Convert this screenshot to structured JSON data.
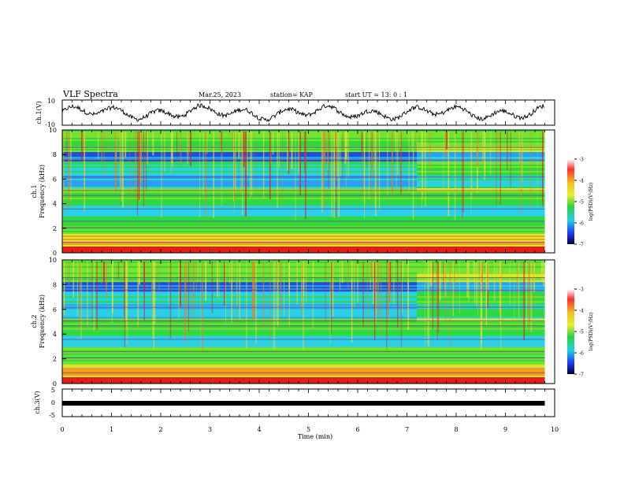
{
  "header": {
    "title": "VLF Spectra",
    "date": "Mar.25, 2023",
    "station": "station= KAP",
    "start": "start  UT =   13: 0  : 1"
  },
  "chart_data": [
    {
      "type": "line",
      "name": "ch1-waveform",
      "ylabel": "ch.1(V)",
      "ylim": [
        -10,
        10
      ],
      "y_ticks": [
        "10",
        "-10"
      ],
      "xlim": [
        0,
        10
      ],
      "x_end": 9.8
    },
    {
      "type": "heatmap",
      "name": "ch1-spectrogram",
      "ylabel_line1": "ch.1",
      "ylabel_line2": "Frequency  (kHz)",
      "ylim": [
        0,
        10
      ],
      "y_ticks": [
        "0",
        "2",
        "4",
        "6",
        "8",
        "10"
      ],
      "xlim": [
        0,
        10
      ],
      "x_end": 9.8,
      "transition_min": 7.2,
      "colorbar": {
        "range": [
          -7,
          -3
        ],
        "ticks": [
          "-3",
          "-4",
          "-5",
          "-6",
          "-7"
        ],
        "label": "log(PSD)(V²/Hz)"
      },
      "colors": {
        "blue": "#1f6fe0",
        "cyan": "#2ad0e8",
        "green": "#3fd23a",
        "yellow": "#e6e830",
        "red": "#e02018"
      }
    },
    {
      "type": "heatmap",
      "name": "ch2-spectrogram",
      "ylabel_line1": "ch.2",
      "ylabel_line2": "Frequency  (kHz)",
      "ylim": [
        0,
        10
      ],
      "y_ticks": [
        "0",
        "2",
        "4",
        "6",
        "8",
        "10"
      ],
      "xlim": [
        0,
        10
      ],
      "x_end": 9.8,
      "transition_min": 7.2,
      "colorbar": {
        "range": [
          -7,
          -3
        ],
        "ticks": [
          "-3",
          "-4",
          "-5",
          "-6",
          "-7"
        ],
        "label": "log(PSD)(V²/Hz)"
      }
    },
    {
      "type": "line",
      "name": "ch3-waveform",
      "ylabel": "ch.3(V)",
      "ylim": [
        -5,
        5
      ],
      "y_ticks": [
        "5",
        "0",
        "-5"
      ],
      "xlim": [
        0,
        10
      ],
      "x_end": 9.8,
      "xlabel": "Time  (min)",
      "x_ticks": [
        "0",
        "1",
        "2",
        "3",
        "4",
        "5",
        "6",
        "7",
        "8",
        "9",
        "10"
      ]
    }
  ]
}
